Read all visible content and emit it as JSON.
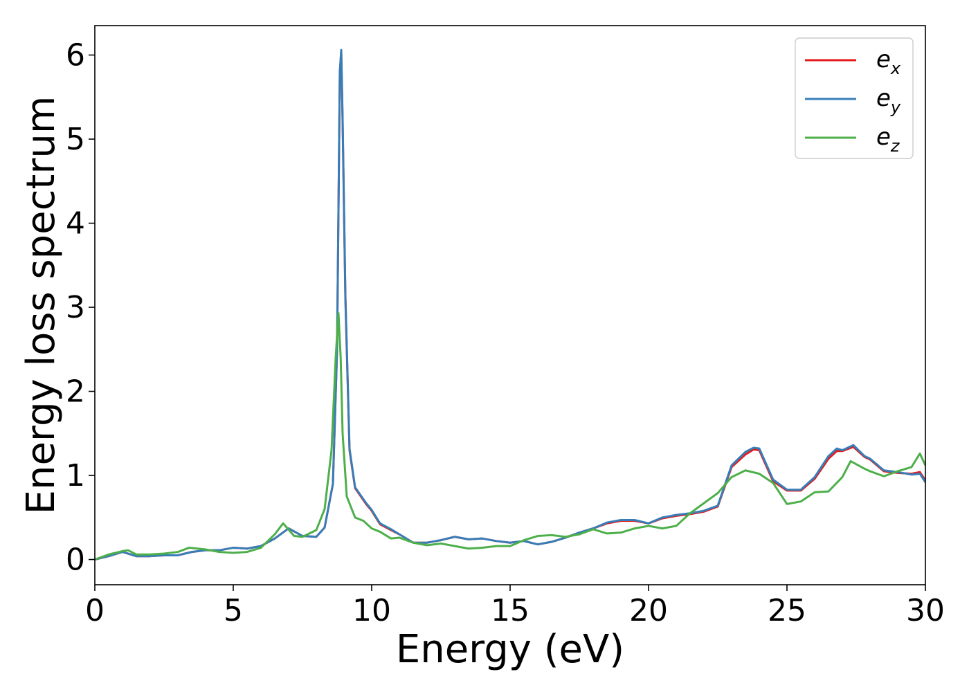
{
  "chart_data": {
    "type": "line",
    "title": "",
    "xlabel": "Energy (eV)",
    "ylabel": "Energy loss spectrum",
    "xlim": [
      0,
      30
    ],
    "ylim": [
      -0.3,
      6.35
    ],
    "xticks": [
      0,
      5,
      10,
      15,
      20,
      25,
      30
    ],
    "yticks": [
      0,
      1,
      2,
      3,
      4,
      5,
      6
    ],
    "grid": false,
    "legend_position": "top-right",
    "series": [
      {
        "name": "e",
        "subscript": "x",
        "color": "#e41a1c",
        "points": [
          [
            0,
            0
          ],
          [
            0.5,
            0.04
          ],
          [
            1,
            0.09
          ],
          [
            1.5,
            0.04
          ],
          [
            2,
            0.04
          ],
          [
            2.5,
            0.05
          ],
          [
            3,
            0.05
          ],
          [
            3.5,
            0.09
          ],
          [
            4,
            0.11
          ],
          [
            4.5,
            0.11
          ],
          [
            5,
            0.14
          ],
          [
            5.5,
            0.13
          ],
          [
            6,
            0.16
          ],
          [
            6.5,
            0.25
          ],
          [
            7,
            0.37
          ],
          [
            7.5,
            0.28
          ],
          [
            8,
            0.27
          ],
          [
            8.3,
            0.38
          ],
          [
            8.6,
            0.9
          ],
          [
            8.75,
            2.5
          ],
          [
            8.85,
            5.8
          ],
          [
            8.9,
            6.03
          ],
          [
            8.95,
            5.2
          ],
          [
            9.05,
            3.1
          ],
          [
            9.2,
            1.3
          ],
          [
            9.4,
            0.85
          ],
          [
            9.8,
            0.66
          ],
          [
            10,
            0.58
          ],
          [
            10.3,
            0.42
          ],
          [
            10.7,
            0.35
          ],
          [
            11,
            0.3
          ],
          [
            11.5,
            0.2
          ],
          [
            12,
            0.2
          ],
          [
            12.5,
            0.23
          ],
          [
            13,
            0.27
          ],
          [
            13.5,
            0.24
          ],
          [
            14,
            0.25
          ],
          [
            14.5,
            0.22
          ],
          [
            15,
            0.2
          ],
          [
            15.5,
            0.22
          ],
          [
            16,
            0.18
          ],
          [
            16.5,
            0.21
          ],
          [
            17,
            0.26
          ],
          [
            17.5,
            0.32
          ],
          [
            18,
            0.37
          ],
          [
            18.5,
            0.43
          ],
          [
            19,
            0.46
          ],
          [
            19.5,
            0.46
          ],
          [
            20,
            0.43
          ],
          [
            20.5,
            0.49
          ],
          [
            21,
            0.52
          ],
          [
            21.5,
            0.54
          ],
          [
            22,
            0.57
          ],
          [
            22.5,
            0.63
          ],
          [
            23,
            1.1
          ],
          [
            23.5,
            1.25
          ],
          [
            23.8,
            1.31
          ],
          [
            24,
            1.3
          ],
          [
            24.5,
            0.93
          ],
          [
            25,
            0.82
          ],
          [
            25.5,
            0.82
          ],
          [
            26,
            0.96
          ],
          [
            26.5,
            1.2
          ],
          [
            26.8,
            1.29
          ],
          [
            27,
            1.29
          ],
          [
            27.4,
            1.34
          ],
          [
            27.8,
            1.22
          ],
          [
            28,
            1.19
          ],
          [
            28.5,
            1.05
          ],
          [
            29,
            1.03
          ],
          [
            29.5,
            1.02
          ],
          [
            29.8,
            1.04
          ],
          [
            30,
            0.94
          ]
        ]
      },
      {
        "name": "e",
        "subscript": "y",
        "color": "#377eb8",
        "points": [
          [
            0,
            0
          ],
          [
            0.5,
            0.04
          ],
          [
            1,
            0.09
          ],
          [
            1.5,
            0.04
          ],
          [
            2,
            0.04
          ],
          [
            2.5,
            0.05
          ],
          [
            3,
            0.05
          ],
          [
            3.5,
            0.09
          ],
          [
            4,
            0.11
          ],
          [
            4.5,
            0.11
          ],
          [
            5,
            0.14
          ],
          [
            5.5,
            0.13
          ],
          [
            6,
            0.16
          ],
          [
            6.5,
            0.25
          ],
          [
            7,
            0.37
          ],
          [
            7.5,
            0.28
          ],
          [
            8,
            0.27
          ],
          [
            8.3,
            0.38
          ],
          [
            8.6,
            0.9
          ],
          [
            8.75,
            2.5
          ],
          [
            8.85,
            5.8
          ],
          [
            8.9,
            6.06
          ],
          [
            8.95,
            5.25
          ],
          [
            9.05,
            3.15
          ],
          [
            9.2,
            1.32
          ],
          [
            9.4,
            0.86
          ],
          [
            9.8,
            0.67
          ],
          [
            10,
            0.59
          ],
          [
            10.3,
            0.43
          ],
          [
            10.7,
            0.36
          ],
          [
            11,
            0.3
          ],
          [
            11.5,
            0.2
          ],
          [
            12,
            0.2
          ],
          [
            12.5,
            0.23
          ],
          [
            13,
            0.27
          ],
          [
            13.5,
            0.24
          ],
          [
            14,
            0.25
          ],
          [
            14.5,
            0.22
          ],
          [
            15,
            0.2
          ],
          [
            15.5,
            0.22
          ],
          [
            16,
            0.18
          ],
          [
            16.5,
            0.21
          ],
          [
            17,
            0.26
          ],
          [
            17.5,
            0.32
          ],
          [
            18,
            0.37
          ],
          [
            18.5,
            0.44
          ],
          [
            19,
            0.47
          ],
          [
            19.5,
            0.47
          ],
          [
            20,
            0.43
          ],
          [
            20.5,
            0.5
          ],
          [
            21,
            0.53
          ],
          [
            21.5,
            0.55
          ],
          [
            22,
            0.58
          ],
          [
            22.5,
            0.64
          ],
          [
            23,
            1.12
          ],
          [
            23.5,
            1.28
          ],
          [
            23.8,
            1.33
          ],
          [
            24,
            1.32
          ],
          [
            24.5,
            0.95
          ],
          [
            25,
            0.83
          ],
          [
            25.5,
            0.83
          ],
          [
            26,
            0.98
          ],
          [
            26.5,
            1.23
          ],
          [
            26.8,
            1.32
          ],
          [
            27,
            1.3
          ],
          [
            27.4,
            1.36
          ],
          [
            27.8,
            1.23
          ],
          [
            28,
            1.2
          ],
          [
            28.5,
            1.06
          ],
          [
            29,
            1.04
          ],
          [
            29.5,
            1.01
          ],
          [
            29.8,
            1.02
          ],
          [
            30,
            0.92
          ]
        ]
      },
      {
        "name": "e",
        "subscript": "z",
        "color": "#4daf4a",
        "points": [
          [
            0,
            0
          ],
          [
            0.5,
            0.06
          ],
          [
            1,
            0.1
          ],
          [
            1.2,
            0.11
          ],
          [
            1.5,
            0.06
          ],
          [
            2,
            0.06
          ],
          [
            2.5,
            0.07
          ],
          [
            3,
            0.09
          ],
          [
            3.4,
            0.14
          ],
          [
            4,
            0.12
          ],
          [
            4.5,
            0.09
          ],
          [
            5,
            0.08
          ],
          [
            5.5,
            0.09
          ],
          [
            6,
            0.14
          ],
          [
            6.5,
            0.3
          ],
          [
            6.8,
            0.43
          ],
          [
            7.2,
            0.28
          ],
          [
            7.5,
            0.27
          ],
          [
            8,
            0.35
          ],
          [
            8.3,
            0.6
          ],
          [
            8.55,
            1.3
          ],
          [
            8.7,
            2.4
          ],
          [
            8.8,
            2.93
          ],
          [
            8.88,
            2.4
          ],
          [
            8.95,
            1.5
          ],
          [
            9.1,
            0.75
          ],
          [
            9.4,
            0.5
          ],
          [
            9.7,
            0.46
          ],
          [
            10,
            0.37
          ],
          [
            10.3,
            0.33
          ],
          [
            10.7,
            0.25
          ],
          [
            11,
            0.26
          ],
          [
            11.5,
            0.2
          ],
          [
            12,
            0.17
          ],
          [
            12.5,
            0.19
          ],
          [
            13,
            0.16
          ],
          [
            13.5,
            0.13
          ],
          [
            14,
            0.14
          ],
          [
            14.5,
            0.16
          ],
          [
            15,
            0.16
          ],
          [
            15.5,
            0.23
          ],
          [
            16,
            0.28
          ],
          [
            16.5,
            0.29
          ],
          [
            17,
            0.27
          ],
          [
            17.5,
            0.3
          ],
          [
            18,
            0.36
          ],
          [
            18.5,
            0.31
          ],
          [
            19,
            0.32
          ],
          [
            19.5,
            0.37
          ],
          [
            20,
            0.4
          ],
          [
            20.5,
            0.37
          ],
          [
            21,
            0.4
          ],
          [
            21.5,
            0.55
          ],
          [
            22,
            0.67
          ],
          [
            22.5,
            0.79
          ],
          [
            23,
            0.98
          ],
          [
            23.5,
            1.06
          ],
          [
            24,
            1.02
          ],
          [
            24.5,
            0.91
          ],
          [
            25,
            0.66
          ],
          [
            25.5,
            0.69
          ],
          [
            26,
            0.8
          ],
          [
            26.5,
            0.81
          ],
          [
            27,
            0.98
          ],
          [
            27.3,
            1.17
          ],
          [
            27.8,
            1.08
          ],
          [
            28,
            1.05
          ],
          [
            28.5,
            0.99
          ],
          [
            29,
            1.05
          ],
          [
            29.5,
            1.1
          ],
          [
            29.8,
            1.26
          ],
          [
            30,
            1.12
          ]
        ]
      }
    ]
  }
}
